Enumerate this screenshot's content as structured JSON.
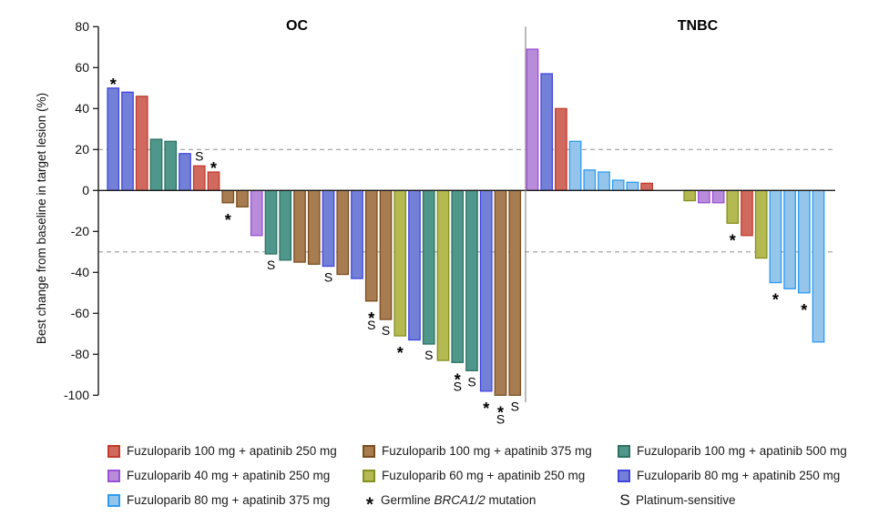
{
  "chart_data": {
    "type": "bar",
    "variant": "waterfall",
    "title": "",
    "xlabel": "",
    "ylabel": "Best change from baseline in target lesion (%)",
    "ylim": [
      -100,
      80
    ],
    "yticks": [
      80,
      60,
      40,
      20,
      0,
      -20,
      -40,
      -60,
      -80,
      -100
    ],
    "ref_lines": [
      20,
      -30
    ],
    "grid": "off",
    "legend_position": "bottom",
    "groups": {
      "fuzu100_apa250": {
        "label": "Fuzuloparib 100 mg + apatinib 250 mg",
        "fill": "#D0695E",
        "stroke": "#C23B2D"
      },
      "fuzu40_apa250": {
        "label": "Fuzuloparib 40 mg + apatinib 250 mg",
        "fill": "#B88CDB",
        "stroke": "#9A4FD6"
      },
      "fuzu80_apa375": {
        "label": "Fuzuloparib 80 mg + apatinib 375 mg",
        "fill": "#95C5EB",
        "stroke": "#2D9CEF"
      },
      "fuzu100_apa375": {
        "label": "Fuzuloparib 100 mg + apatinib 375 mg",
        "fill": "#A77C50",
        "stroke": "#7B4E20"
      },
      "fuzu60_apa250": {
        "label": "Fuzuloparib 60 mg + apatinib 250 mg",
        "fill": "#B4B951",
        "stroke": "#84901F"
      },
      "fuzu100_apa500": {
        "label": "Fuzuloparib 100 mg + apatinib 500 mg",
        "fill": "#4F978B",
        "stroke": "#2E7265"
      },
      "fuzu80_apa250": {
        "label": "Fuzuloparib 80 mg + apatinib 250 mg",
        "fill": "#7280D7",
        "stroke": "#4145E0"
      }
    },
    "mark_meanings": {
      "*": "Germline BRCA1/2 mutation",
      "S": "Platinum-sensitive"
    },
    "panels": [
      {
        "title": "OC",
        "bars": [
          {
            "slot": 0,
            "group": "fuzu80_apa250",
            "value": 50,
            "marks": [
              "*"
            ]
          },
          {
            "slot": 1,
            "group": "fuzu80_apa250",
            "value": 48
          },
          {
            "slot": 2,
            "group": "fuzu100_apa250",
            "value": 46
          },
          {
            "slot": 3,
            "group": "fuzu100_apa500",
            "value": 25
          },
          {
            "slot": 4,
            "group": "fuzu100_apa500",
            "value": 24
          },
          {
            "slot": 5,
            "group": "fuzu80_apa250",
            "value": 18
          },
          {
            "slot": 6,
            "group": "fuzu100_apa250",
            "value": 12,
            "marks": [
              "S"
            ]
          },
          {
            "slot": 7,
            "group": "fuzu100_apa250",
            "value": 9,
            "marks": [
              "*"
            ]
          },
          {
            "slot": 8,
            "group": "fuzu100_apa375",
            "value": -6,
            "marks": [
              "*"
            ]
          },
          {
            "slot": 9,
            "group": "fuzu100_apa375",
            "value": -8
          },
          {
            "slot": 10,
            "group": "fuzu40_apa250",
            "value": -22
          },
          {
            "slot": 11,
            "group": "fuzu100_apa500",
            "value": -31,
            "marks": [
              "S"
            ]
          },
          {
            "slot": 12,
            "group": "fuzu100_apa500",
            "value": -34
          },
          {
            "slot": 13,
            "group": "fuzu100_apa375",
            "value": -35
          },
          {
            "slot": 14,
            "group": "fuzu100_apa375",
            "value": -36
          },
          {
            "slot": 15,
            "group": "fuzu80_apa250",
            "value": -37,
            "marks": [
              "S"
            ]
          },
          {
            "slot": 16,
            "group": "fuzu100_apa375",
            "value": -41
          },
          {
            "slot": 17,
            "group": "fuzu80_apa250",
            "value": -43
          },
          {
            "slot": 18,
            "group": "fuzu100_apa375",
            "value": -54,
            "marks": [
              "*",
              "S"
            ]
          },
          {
            "slot": 19,
            "group": "fuzu100_apa375",
            "value": -63,
            "marks": [
              "S"
            ]
          },
          {
            "slot": 20,
            "group": "fuzu60_apa250",
            "value": -71,
            "marks": [
              "*"
            ]
          },
          {
            "slot": 21,
            "group": "fuzu80_apa250",
            "value": -73
          },
          {
            "slot": 22,
            "group": "fuzu100_apa500",
            "value": -75,
            "marks": [
              "S"
            ]
          },
          {
            "slot": 23,
            "group": "fuzu60_apa250",
            "value": -83
          },
          {
            "slot": 24,
            "group": "fuzu100_apa500",
            "value": -84,
            "marks": [
              "*",
              "S"
            ]
          },
          {
            "slot": 25,
            "group": "fuzu100_apa500",
            "value": -88,
            "marks": [
              "S"
            ]
          },
          {
            "slot": 26,
            "group": "fuzu80_apa250",
            "value": -98,
            "marks": [
              "*"
            ]
          },
          {
            "slot": 27,
            "group": "fuzu100_apa375",
            "value": -100,
            "marks": [
              "*",
              "S"
            ]
          },
          {
            "slot": 28,
            "group": "fuzu100_apa375",
            "value": -100,
            "marks": [
              "S"
            ]
          }
        ]
      },
      {
        "title": "TNBC",
        "bars": [
          {
            "slot": 0,
            "group": "fuzu40_apa250",
            "value": 69
          },
          {
            "slot": 1,
            "group": "fuzu80_apa250",
            "value": 57
          },
          {
            "slot": 2,
            "group": "fuzu100_apa250",
            "value": 40
          },
          {
            "slot": 3,
            "group": "fuzu80_apa375",
            "value": 24
          },
          {
            "slot": 4,
            "group": "fuzu80_apa375",
            "value": 10
          },
          {
            "slot": 5,
            "group": "fuzu80_apa375",
            "value": 9
          },
          {
            "slot": 6,
            "group": "fuzu80_apa375",
            "value": 5
          },
          {
            "slot": 7,
            "group": "fuzu80_apa375",
            "value": 4
          },
          {
            "slot": 8,
            "group": "fuzu100_apa250",
            "value": 3.5
          },
          {
            "slot": 11,
            "group": "fuzu60_apa250",
            "value": -5
          },
          {
            "slot": 12,
            "group": "fuzu40_apa250",
            "value": -6
          },
          {
            "slot": 13,
            "group": "fuzu40_apa250",
            "value": -6
          },
          {
            "slot": 14,
            "group": "fuzu60_apa250",
            "value": -16,
            "marks": [
              "*"
            ]
          },
          {
            "slot": 15,
            "group": "fuzu100_apa250",
            "value": -22
          },
          {
            "slot": 16,
            "group": "fuzu60_apa250",
            "value": -33
          },
          {
            "slot": 17,
            "group": "fuzu80_apa375",
            "value": -45,
            "marks": [
              "*"
            ]
          },
          {
            "slot": 18,
            "group": "fuzu80_apa375",
            "value": -48
          },
          {
            "slot": 19,
            "group": "fuzu80_apa375",
            "value": -50,
            "marks": [
              "*"
            ]
          },
          {
            "slot": 20,
            "group": "fuzu80_apa375",
            "value": -74
          }
        ]
      }
    ]
  },
  "legend": {
    "columns": [
      [
        {
          "type": "swatch",
          "group": "fuzu100_apa250"
        },
        {
          "type": "swatch",
          "group": "fuzu40_apa250"
        },
        {
          "type": "swatch",
          "group": "fuzu80_apa375"
        }
      ],
      [
        {
          "type": "swatch",
          "group": "fuzu100_apa375"
        },
        {
          "type": "swatch",
          "group": "fuzu60_apa250"
        },
        {
          "type": "symbol",
          "symbol": "*",
          "label_prefix": "Germline ",
          "label_italic": "BRCA1/2",
          "label_suffix": " mutation"
        }
      ],
      [
        {
          "type": "swatch",
          "group": "fuzu100_apa500"
        },
        {
          "type": "swatch",
          "group": "fuzu80_apa250"
        },
        {
          "type": "symbol",
          "symbol": "S",
          "label": "Platinum-sensitive"
        }
      ]
    ]
  }
}
